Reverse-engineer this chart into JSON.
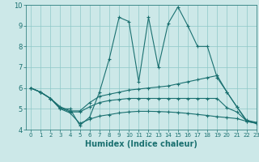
{
  "xlabel": "Humidex (Indice chaleur)",
  "xlim": [
    -0.5,
    23
  ],
  "ylim": [
    4,
    10
  ],
  "xticks": [
    0,
    1,
    2,
    3,
    4,
    5,
    6,
    7,
    8,
    9,
    10,
    11,
    12,
    13,
    14,
    15,
    16,
    17,
    18,
    19,
    20,
    21,
    22,
    23
  ],
  "yticks": [
    4,
    5,
    6,
    7,
    8,
    9,
    10
  ],
  "bg_color": "#cce8e8",
  "line_color": "#1a7070",
  "grid_color": "#8ec8c8",
  "lines": [
    {
      "x": [
        0,
        1,
        2,
        3,
        4,
        5,
        6,
        7,
        8,
        9,
        10,
        11,
        12,
        13,
        14,
        15,
        16,
        17,
        18,
        19,
        20,
        21,
        22,
        23
      ],
      "y": [
        6.0,
        5.8,
        5.5,
        5.0,
        5.0,
        4.2,
        4.6,
        5.8,
        7.4,
        9.4,
        9.2,
        6.3,
        9.4,
        7.0,
        9.1,
        9.9,
        9.0,
        8.0,
        8.0,
        6.5,
        5.8,
        5.1,
        4.4,
        4.3
      ]
    },
    {
      "x": [
        0,
        1,
        2,
        3,
        4,
        5,
        6,
        7,
        8,
        9,
        10,
        11,
        12,
        13,
        14,
        15,
        16,
        17,
        18,
        19,
        20,
        21,
        22,
        23
      ],
      "y": [
        6.0,
        5.8,
        5.5,
        5.1,
        4.9,
        4.9,
        5.3,
        5.6,
        5.7,
        5.8,
        5.9,
        5.95,
        6.0,
        6.05,
        6.1,
        6.2,
        6.3,
        6.4,
        6.5,
        6.6,
        5.8,
        5.1,
        4.45,
        4.35
      ]
    },
    {
      "x": [
        0,
        1,
        2,
        3,
        4,
        5,
        6,
        7,
        8,
        9,
        10,
        11,
        12,
        13,
        14,
        15,
        16,
        17,
        18,
        19,
        20,
        21,
        22,
        23
      ],
      "y": [
        6.0,
        5.8,
        5.5,
        5.05,
        4.85,
        4.85,
        5.1,
        5.3,
        5.4,
        5.45,
        5.5,
        5.5,
        5.5,
        5.5,
        5.5,
        5.5,
        5.5,
        5.5,
        5.5,
        5.5,
        5.05,
        4.85,
        4.42,
        4.32
      ]
    },
    {
      "x": [
        0,
        1,
        2,
        3,
        4,
        5,
        6,
        7,
        8,
        9,
        10,
        11,
        12,
        13,
        14,
        15,
        16,
        17,
        18,
        19,
        20,
        21,
        22,
        23
      ],
      "y": [
        6.0,
        5.8,
        5.5,
        5.0,
        4.8,
        4.3,
        4.5,
        4.65,
        4.72,
        4.8,
        4.85,
        4.88,
        4.88,
        4.87,
        4.85,
        4.82,
        4.78,
        4.73,
        4.68,
        4.62,
        4.58,
        4.53,
        4.4,
        4.3
      ]
    }
  ]
}
